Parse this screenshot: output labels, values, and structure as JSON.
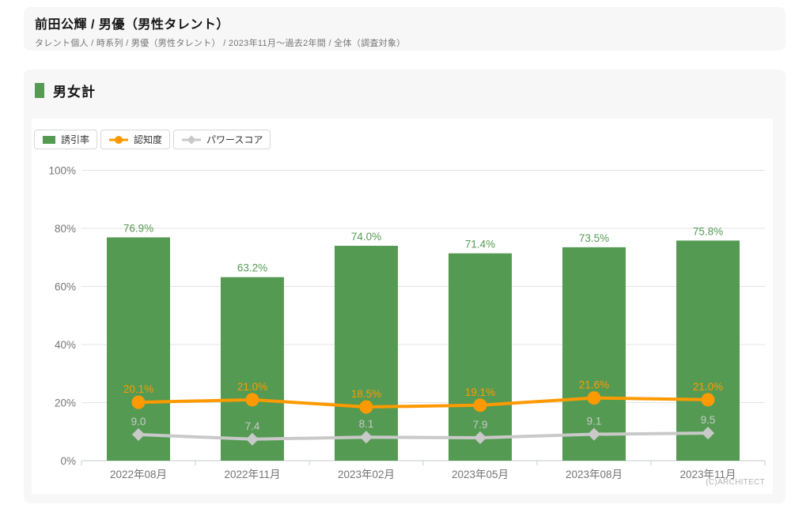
{
  "header": {
    "title": "前田公輝 / 男優（男性タレント）",
    "breadcrumb": "タレント個人 / 時系列 / 男優（男性タレント） / 2023年11月～過去2年間 / 全体（調査対象）"
  },
  "section": {
    "title": "男女計"
  },
  "legend": {
    "items": [
      {
        "label": "誘引率",
        "marker": "bar",
        "color": "#549a53"
      },
      {
        "label": "認知度",
        "marker": "line-circle",
        "color": "#ff9900"
      },
      {
        "label": "パワースコア",
        "marker": "line-diamond",
        "color": "#c9c9c9"
      }
    ]
  },
  "watermark": "(C)ARCHITECT",
  "colors": {
    "bar_green": "#549a53",
    "line_orange": "#ff9900",
    "line_gray": "#c9c9c9",
    "grid": "#e4e4e4",
    "axis_line": "#c5ccd2",
    "axis_text": "#757575",
    "panel_bg": "#f7f7f8"
  },
  "chart_data": {
    "type": "bar",
    "categories": [
      "2022年08月",
      "2022年11月",
      "2023年02月",
      "2023年05月",
      "2023年08月",
      "2023年11月"
    ],
    "series": [
      {
        "name": "誘引率",
        "type": "bar",
        "color": "#549a53",
        "values": [
          76.9,
          63.2,
          74.0,
          71.4,
          73.5,
          75.8
        ],
        "labels": [
          "76.9%",
          "63.2%",
          "74.0%",
          "71.4%",
          "73.5%",
          "75.8%"
        ]
      },
      {
        "name": "認知度",
        "type": "line",
        "marker": "circle",
        "color": "#ff9900",
        "values": [
          20.1,
          21.0,
          18.5,
          19.1,
          21.6,
          21.0
        ],
        "labels": [
          "20.1%",
          "21.0%",
          "18.5%",
          "19.1%",
          "21.6%",
          "21.0%"
        ]
      },
      {
        "name": "パワースコア",
        "type": "line",
        "marker": "diamond",
        "color": "#c9c9c9",
        "values": [
          9.0,
          7.4,
          8.1,
          7.9,
          9.1,
          9.5
        ],
        "labels": [
          "9.0",
          "7.4",
          "8.1",
          "7.9",
          "9.1",
          "9.5"
        ]
      }
    ],
    "title": "男女計",
    "xlabel": "",
    "ylabel": "",
    "ylim": [
      0,
      100
    ],
    "yticks": [
      "0%",
      "20%",
      "40%",
      "60%",
      "80%",
      "100%"
    ],
    "grid": true,
    "legend_position": "top-left"
  }
}
